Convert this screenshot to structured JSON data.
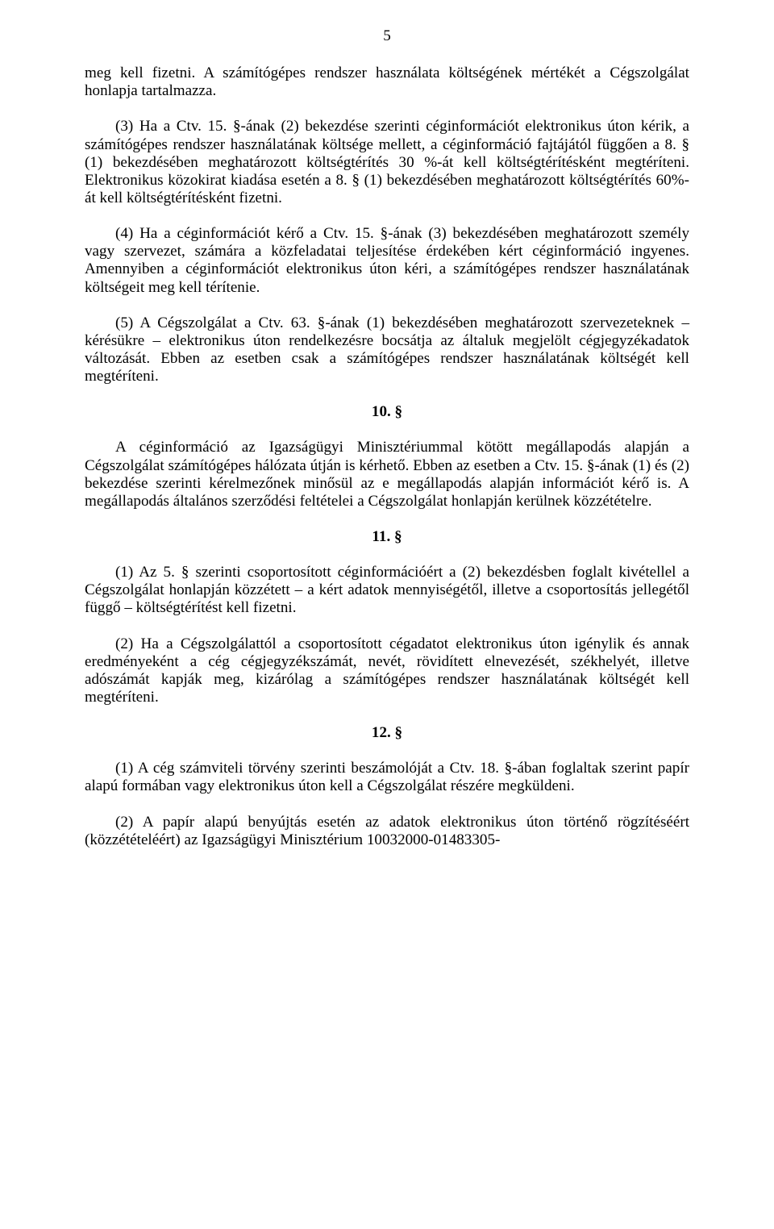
{
  "page_number": "5",
  "paragraphs": {
    "p1": "meg kell fizetni. A számítógépes rendszer használata költségének mértékét a Cégszolgálat honlapja tartalmazza.",
    "p2": "(3) Ha a Ctv. 15. §-ának (2) bekezdése szerinti céginformációt elektronikus úton kérik, a számítógépes rendszer használatának költsége mellett, a céginformáció fajtájától függően a 8. § (1) bekezdésében meghatározott költségtérítés 30 %-át kell költségtérítésként megtéríteni. Elektronikus közokirat kiadása esetén a 8. § (1) bekezdésében meghatározott költségtérítés 60%-át kell költségtérítésként fizetni.",
    "p3": "(4) Ha a céginformációt kérő a Ctv. 15. §-ának (3) bekezdésében meghatározott személy vagy szervezet, számára a közfeladatai teljesítése érdekében kért céginformáció ingyenes. Amennyiben a céginformációt elektronikus úton kéri, a számítógépes rendszer használatának költségeit meg kell térítenie.",
    "p4": "(5) A Cégszolgálat a Ctv. 63. §-ának (1) bekezdésében meghatározott szervezeteknek – kérésükre – elektronikus úton rendelkezésre bocsátja az általuk megjelölt cégjegyzékadatok változását. Ebben az esetben csak a számítógépes rendszer használatának költségét kell megtéríteni.",
    "p5": "A céginformáció az Igazságügyi Minisztériummal kötött megállapodás alapján a Cégszolgálat számítógépes hálózata útján is kérhető. Ebben az esetben a Ctv. 15. §-ának (1) és (2) bekezdése szerinti kérelmezőnek minősül az e megállapodás alapján információt kérő is. A megállapodás általános szerződési feltételei a Cégszolgálat honlapján kerülnek közzétételre.",
    "p6": "(1) Az 5. § szerinti csoportosított céginformációért a (2) bekezdésben foglalt kivétellel a Cégszolgálat honlapján közzétett – a kért adatok mennyiségétől, illetve a csoportosítás jellegétől függő – költségtérítést kell fizetni.",
    "p7": "(2) Ha a Cégszolgálattól a csoportosított cégadatot elektronikus úton igénylik és annak eredményeként a cég cégjegyzékszámát, nevét, rövidített elnevezését, székhelyét, illetve adószámát kapják meg, kizárólag a számítógépes rendszer használatának költségét kell megtéríteni.",
    "p8": "(1) A cég számviteli törvény szerinti beszámolóját a Ctv. 18. §-ában foglaltak szerint papír alapú formában vagy elektronikus úton kell a Cégszolgálat részére megküldeni.",
    "p9": "(2) A papír alapú benyújtás esetén az adatok elektronikus úton történő rögzítéséért (közzétételéért) az Igazságügyi Minisztérium 10032000-01483305-"
  },
  "headings": {
    "s10": "10. §",
    "s11": "11. §",
    "s12": "12. §"
  }
}
